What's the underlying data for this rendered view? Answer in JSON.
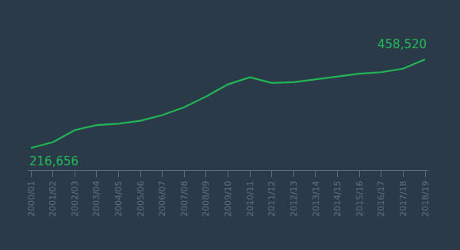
{
  "chart_data": {
    "type": "line",
    "categories": [
      "2000/01",
      "2001/02",
      "2002/03",
      "2003/04",
      "2004/05",
      "2005/06",
      "2006/07",
      "2007/08",
      "2008/09",
      "2009/10",
      "2010/11",
      "2011/12",
      "2012/13",
      "2013/14",
      "2014/15",
      "2015/16",
      "2016/17",
      "2017/18",
      "2018/19"
    ],
    "values": [
      216656,
      232260,
      265420,
      279070,
      282970,
      290780,
      306380,
      327830,
      357090,
      390250,
      409750,
      394150,
      396100,
      403900,
      411700,
      419500,
      423400,
      433160,
      458520
    ],
    "value_labels": [
      "216,656",
      null,
      null,
      null,
      null,
      null,
      null,
      null,
      null,
      null,
      null,
      null,
      null,
      null,
      null,
      null,
      null,
      null,
      "458,520"
    ],
    "data_labels": true,
    "color": "#22b357",
    "grid": false,
    "tick_labels": "x"
  }
}
